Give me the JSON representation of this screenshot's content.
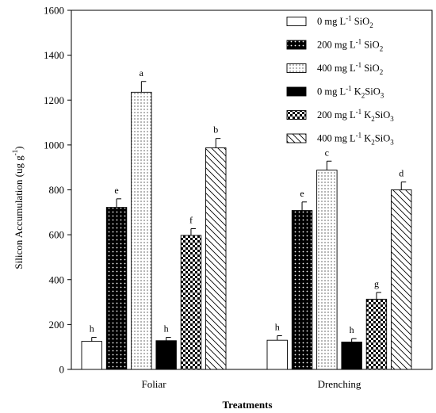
{
  "chart_data": {
    "type": "bar",
    "title": "",
    "xlabel": "Treatments",
    "ylabel": "Silicon Accumulation (ug g",
    "ylabel_sup": "-1",
    "ylabel_close": ")",
    "ylim": [
      0,
      1600
    ],
    "yticks": [
      "0",
      "200",
      "400",
      "600",
      "800",
      "1000",
      "1200",
      "1400",
      "1600"
    ],
    "categories": [
      "Foliar",
      "Drenching"
    ],
    "legend_position": "top-right",
    "series": [
      {
        "name": "0 mg L-1 SiO2",
        "name_parts": [
          "0 mg L",
          "-1",
          " SiO",
          "2"
        ],
        "pattern": "white",
        "values": [
          125,
          130
        ],
        "errors": [
          18,
          20
        ],
        "letters": [
          "h",
          "h"
        ]
      },
      {
        "name": "200 mg L-1 SiO2",
        "name_parts": [
          "200 mg L",
          "-1",
          " SiO",
          "2"
        ],
        "pattern": "black-dots",
        "values": [
          722,
          708
        ],
        "errors": [
          38,
          38
        ],
        "letters": [
          "e",
          "e"
        ]
      },
      {
        "name": "400 mg L-1 SiO2",
        "name_parts": [
          "400 mg L",
          "-1",
          " SiO",
          "2"
        ],
        "pattern": "white-dots",
        "values": [
          1235,
          888
        ],
        "errors": [
          48,
          40
        ],
        "letters": [
          "a",
          "c"
        ]
      },
      {
        "name": "0 mg L-1 K2SiO3",
        "name_parts": [
          "0 mg L",
          "-1",
          " K",
          "2",
          "SiO",
          "3"
        ],
        "pattern": "black",
        "values": [
          128,
          122
        ],
        "errors": [
          15,
          15
        ],
        "letters": [
          "h",
          "h"
        ]
      },
      {
        "name": "200 mg L-1 K2SiO3",
        "name_parts": [
          "200 mg L",
          "-1",
          " K",
          "2",
          "SiO",
          "3"
        ],
        "pattern": "checker",
        "values": [
          597,
          313
        ],
        "errors": [
          30,
          30
        ],
        "letters": [
          "f",
          "g"
        ]
      },
      {
        "name": "400 mg L-1 K2SiO3",
        "name_parts": [
          "400 mg L",
          "-1",
          " K",
          "2",
          "SiO",
          "3"
        ],
        "pattern": "diagonal",
        "values": [
          987,
          800
        ],
        "errors": [
          42,
          35
        ],
        "letters": [
          "b",
          "d"
        ]
      }
    ]
  }
}
